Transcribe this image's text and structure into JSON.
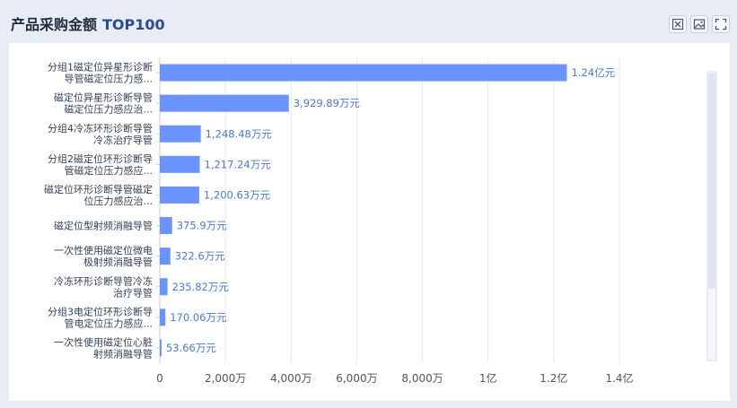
{
  "header": {
    "title_zh": "产品采购金额",
    "title_tag": "TOP100"
  },
  "toolbar": {
    "icons": [
      "excel-export-icon",
      "image-export-icon",
      "fullscreen-icon"
    ]
  },
  "colors": {
    "bar": "#6b93ff",
    "value_label": "#4a78d4",
    "grid": "#e6e9ef"
  },
  "chart_data": {
    "type": "bar",
    "orientation": "horizontal",
    "categories": [
      [
        "分组1磁定位异星形诊断",
        "导管磁定位压力感..."
      ],
      [
        "磁定位异星形诊断导管",
        "磁定位压力感应治..."
      ],
      [
        "分组4冷冻环形诊断导管",
        "冷冻治疗导管"
      ],
      [
        "分组2磁定位环形诊断导",
        "管磁定位压力感应..."
      ],
      [
        "磁定位环形诊断导管磁定",
        "位压力感应治..."
      ],
      [
        "磁定位型射频消融导管"
      ],
      [
        "一次性使用磁定位微电",
        "极射频消融导管"
      ],
      [
        "冷冻环形诊断导管冷冻",
        "治疗导管"
      ],
      [
        "分组3电定位环形诊断导",
        "管电定位压力感应..."
      ],
      [
        "一次性使用磁定位心脏",
        "射频消融导管"
      ]
    ],
    "values": [
      124000000,
      39298900,
      12484800,
      12172400,
      12006300,
      3759000,
      3226000,
      2358200,
      1700600,
      536600
    ],
    "value_labels": [
      "1.24亿元",
      "3,929.89万元",
      "1,248.48万元",
      "1,217.24万元",
      "1,200.63万元",
      "375.9万元",
      "322.6万元",
      "235.82万元",
      "170.06万元",
      "53.66万元"
    ],
    "x_ticks": [
      0,
      20000000,
      40000000,
      60000000,
      80000000,
      100000000,
      120000000,
      140000000
    ],
    "x_tick_labels": [
      "0",
      "2,000万",
      "4,000万",
      "6,000万",
      "8,000万",
      "1亿",
      "1.2亿",
      "1.4亿"
    ],
    "xlim": [
      0,
      140000000
    ],
    "grid": true,
    "legend": "none"
  }
}
